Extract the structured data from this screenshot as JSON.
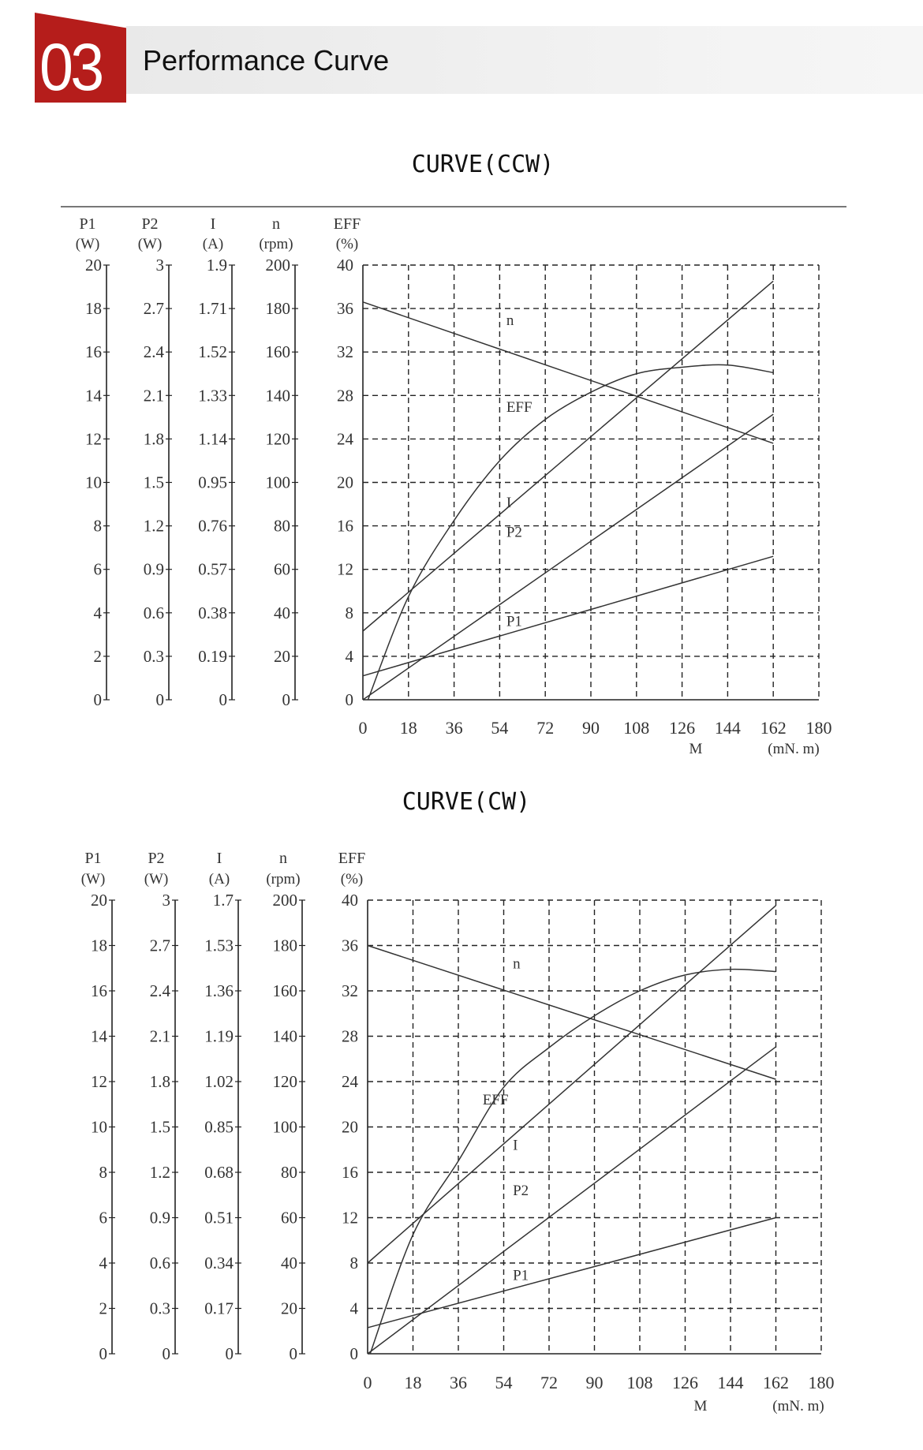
{
  "header": {
    "number": "03",
    "title": "Performance Curve",
    "accent_color": "#b51d1b"
  },
  "chart_data": [
    {
      "type": "line",
      "title": "CURVE(CCW)",
      "xlabel": "M",
      "xunit": "(mN. m)",
      "x_ticks": [
        "0",
        "18",
        "36",
        "54",
        "72",
        "90",
        "108",
        "126",
        "144",
        "162",
        "180"
      ],
      "xlim": [
        0,
        180
      ],
      "grid": true,
      "axes": [
        {
          "name": "P1",
          "unit": "(W)",
          "max": 20,
          "ticks": [
            "20",
            "18",
            "16",
            "14",
            "12",
            "10",
            "8",
            "6",
            "4",
            "2",
            "0"
          ]
        },
        {
          "name": "P2",
          "unit": "(W)",
          "max": 3,
          "ticks": [
            "3",
            "2.7",
            "2.4",
            "2.1",
            "1.8",
            "1.5",
            "1.2",
            "0.9",
            "0.6",
            "0.3",
            "0"
          ]
        },
        {
          "name": "I",
          "unit": "(A)",
          "max": 1.9,
          "ticks": [
            "1.9",
            "1.71",
            "1.52",
            "1.33",
            "1.14",
            "0.95",
            "0.76",
            "0.57",
            "0.38",
            "0.19",
            "0"
          ]
        },
        {
          "name": "n",
          "unit": "(rpm)",
          "max": 200,
          "ticks": [
            "200",
            "180",
            "160",
            "140",
            "120",
            "100",
            "80",
            "60",
            "40",
            "20",
            "0"
          ]
        },
        {
          "name": "EFF",
          "unit": "(%)",
          "max": 40,
          "ticks": [
            "40",
            "36",
            "32",
            "28",
            "24",
            "20",
            "16",
            "12",
            "8",
            "4",
            "0"
          ]
        }
      ],
      "series": [
        {
          "name": "n",
          "axis": "n",
          "x": [
            0,
            162
          ],
          "y": [
            183,
            118
          ],
          "label_at": [
            56,
            34.5
          ]
        },
        {
          "name": "EFF",
          "axis": "EFF",
          "x": [
            2,
            18,
            36,
            54,
            72,
            90,
            108,
            126,
            144,
            162
          ],
          "y": [
            0,
            9.5,
            16.5,
            22,
            25.8,
            28.3,
            30,
            30.6,
            30.8,
            30.1
          ],
          "label_at": [
            56,
            26.5
          ]
        },
        {
          "name": "I",
          "axis": "I",
          "x": [
            0,
            162
          ],
          "y": [
            0.3,
            1.83
          ],
          "label_at": [
            56,
            17.7
          ]
        },
        {
          "name": "P2",
          "axis": "P2",
          "x": [
            0,
            162
          ],
          "y": [
            0,
            1.97
          ],
          "label_at": [
            56,
            15
          ]
        },
        {
          "name": "P1",
          "axis": "P1",
          "x": [
            0,
            162
          ],
          "y": [
            1.1,
            6.6
          ],
          "label_at": [
            56,
            6.8
          ]
        }
      ]
    },
    {
      "type": "line",
      "title": "CURVE(CW)",
      "xlabel": "M",
      "xunit": "(mN. m)",
      "x_ticks": [
        "0",
        "18",
        "36",
        "54",
        "72",
        "90",
        "108",
        "126",
        "144",
        "162",
        "180"
      ],
      "xlim": [
        0,
        180
      ],
      "grid": true,
      "axes": [
        {
          "name": "P1",
          "unit": "(W)",
          "max": 20,
          "ticks": [
            "20",
            "18",
            "16",
            "14",
            "12",
            "10",
            "8",
            "6",
            "4",
            "2",
            "0"
          ]
        },
        {
          "name": "P2",
          "unit": "(W)",
          "max": 3,
          "ticks": [
            "3",
            "2.7",
            "2.4",
            "2.1",
            "1.8",
            "1.5",
            "1.2",
            "0.9",
            "0.6",
            "0.3",
            "0"
          ]
        },
        {
          "name": "I",
          "unit": "(A)",
          "max": 1.7,
          "ticks": [
            "1.7",
            "1.53",
            "1.36",
            "1.19",
            "1.02",
            "0.85",
            "0.68",
            "0.51",
            "0.34",
            "0.17",
            "0"
          ]
        },
        {
          "name": "n",
          "unit": "(rpm)",
          "max": 200,
          "ticks": [
            "200",
            "180",
            "160",
            "140",
            "120",
            "100",
            "80",
            "60",
            "40",
            "20",
            "0"
          ]
        },
        {
          "name": "EFF",
          "unit": "(%)",
          "max": 40,
          "ticks": [
            "40",
            "36",
            "32",
            "28",
            "24",
            "20",
            "16",
            "12",
            "8",
            "4",
            "0"
          ]
        }
      ],
      "series": [
        {
          "name": "n",
          "axis": "n",
          "x": [
            0,
            162
          ],
          "y": [
            180,
            121
          ],
          "label_at": [
            57,
            34
          ]
        },
        {
          "name": "EFF",
          "axis": "EFF",
          "x": [
            1,
            18,
            36,
            54,
            72,
            90,
            108,
            126,
            144,
            162
          ],
          "y": [
            0,
            10.5,
            17,
            23.5,
            27,
            29.8,
            32,
            33.4,
            33.9,
            33.7
          ],
          "label_at": [
            45,
            22
          ]
        },
        {
          "name": "I",
          "axis": "I",
          "x": [
            0,
            162
          ],
          "y": [
            0.34,
            1.68
          ],
          "label_at": [
            57,
            18
          ]
        },
        {
          "name": "P2",
          "axis": "P2",
          "x": [
            0,
            162
          ],
          "y": [
            0,
            2.03
          ],
          "label_at": [
            57,
            14
          ]
        },
        {
          "name": "P1",
          "axis": "P1",
          "x": [
            0,
            162
          ],
          "y": [
            1.15,
            6.0
          ],
          "label_at": [
            57,
            6.5
          ]
        }
      ]
    }
  ]
}
